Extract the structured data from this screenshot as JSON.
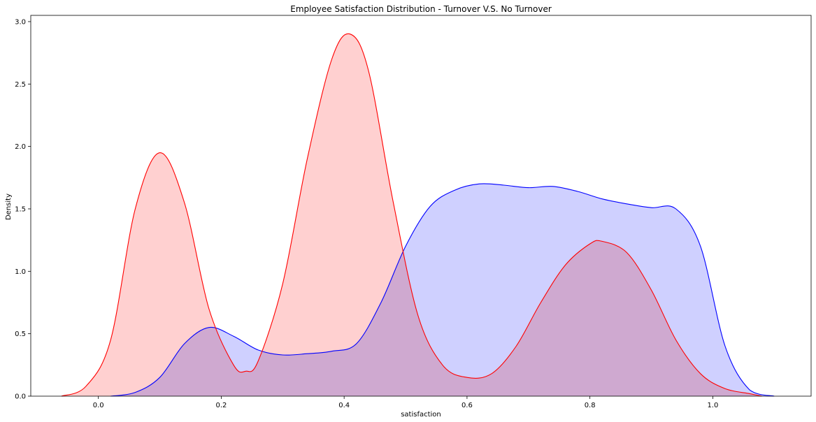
{
  "chart_data": {
    "type": "area",
    "title": "Employee Satisfaction Distribution - Turnover V.S. No Turnover",
    "xlabel": "satisfaction",
    "ylabel": "Density",
    "xlim": [
      -0.11,
      1.16
    ],
    "ylim": [
      0,
      3.05
    ],
    "x_ticks": [
      0.0,
      0.2,
      0.4,
      0.6,
      0.8,
      1.0
    ],
    "x_tick_labels": [
      "0.0",
      "0.2",
      "0.4",
      "0.6",
      "0.8",
      "1.0"
    ],
    "y_ticks": [
      0.0,
      0.5,
      1.0,
      1.5,
      2.0,
      2.5,
      3.0
    ],
    "y_tick_labels": [
      "0.0",
      "0.5",
      "1.0",
      "1.5",
      "2.0",
      "2.5",
      "3.0"
    ],
    "grid": false,
    "series": [
      {
        "color": "#0000ff",
        "fill": "#bbbcff",
        "x": [
          0.02,
          0.06,
          0.1,
          0.14,
          0.18,
          0.22,
          0.26,
          0.3,
          0.34,
          0.38,
          0.42,
          0.46,
          0.5,
          0.54,
          0.58,
          0.62,
          0.66,
          0.7,
          0.74,
          0.78,
          0.82,
          0.86,
          0.9,
          0.94,
          0.98,
          1.02,
          1.06,
          1.1
        ],
        "y": [
          0.0,
          0.03,
          0.15,
          0.42,
          0.55,
          0.48,
          0.37,
          0.33,
          0.34,
          0.36,
          0.42,
          0.75,
          1.2,
          1.52,
          1.65,
          1.7,
          1.69,
          1.67,
          1.68,
          1.64,
          1.58,
          1.54,
          1.51,
          1.5,
          1.2,
          0.4,
          0.05,
          0.0
        ]
      },
      {
        "color": "#ff0000",
        "fill": "#ffbcbc",
        "x": [
          -0.06,
          -0.02,
          0.02,
          0.06,
          0.1,
          0.14,
          0.18,
          0.22,
          0.24,
          0.26,
          0.3,
          0.34,
          0.38,
          0.41,
          0.44,
          0.48,
          0.52,
          0.56,
          0.6,
          0.64,
          0.68,
          0.72,
          0.76,
          0.8,
          0.82,
          0.86,
          0.9,
          0.94,
          0.98,
          1.02,
          1.06,
          1.08
        ],
        "y": [
          0.0,
          0.08,
          0.45,
          1.5,
          1.95,
          1.55,
          0.7,
          0.25,
          0.2,
          0.28,
          0.9,
          1.9,
          2.7,
          2.9,
          2.6,
          1.55,
          0.65,
          0.25,
          0.15,
          0.18,
          0.4,
          0.75,
          1.05,
          1.22,
          1.24,
          1.15,
          0.85,
          0.45,
          0.18,
          0.06,
          0.02,
          0.0
        ]
      }
    ]
  }
}
